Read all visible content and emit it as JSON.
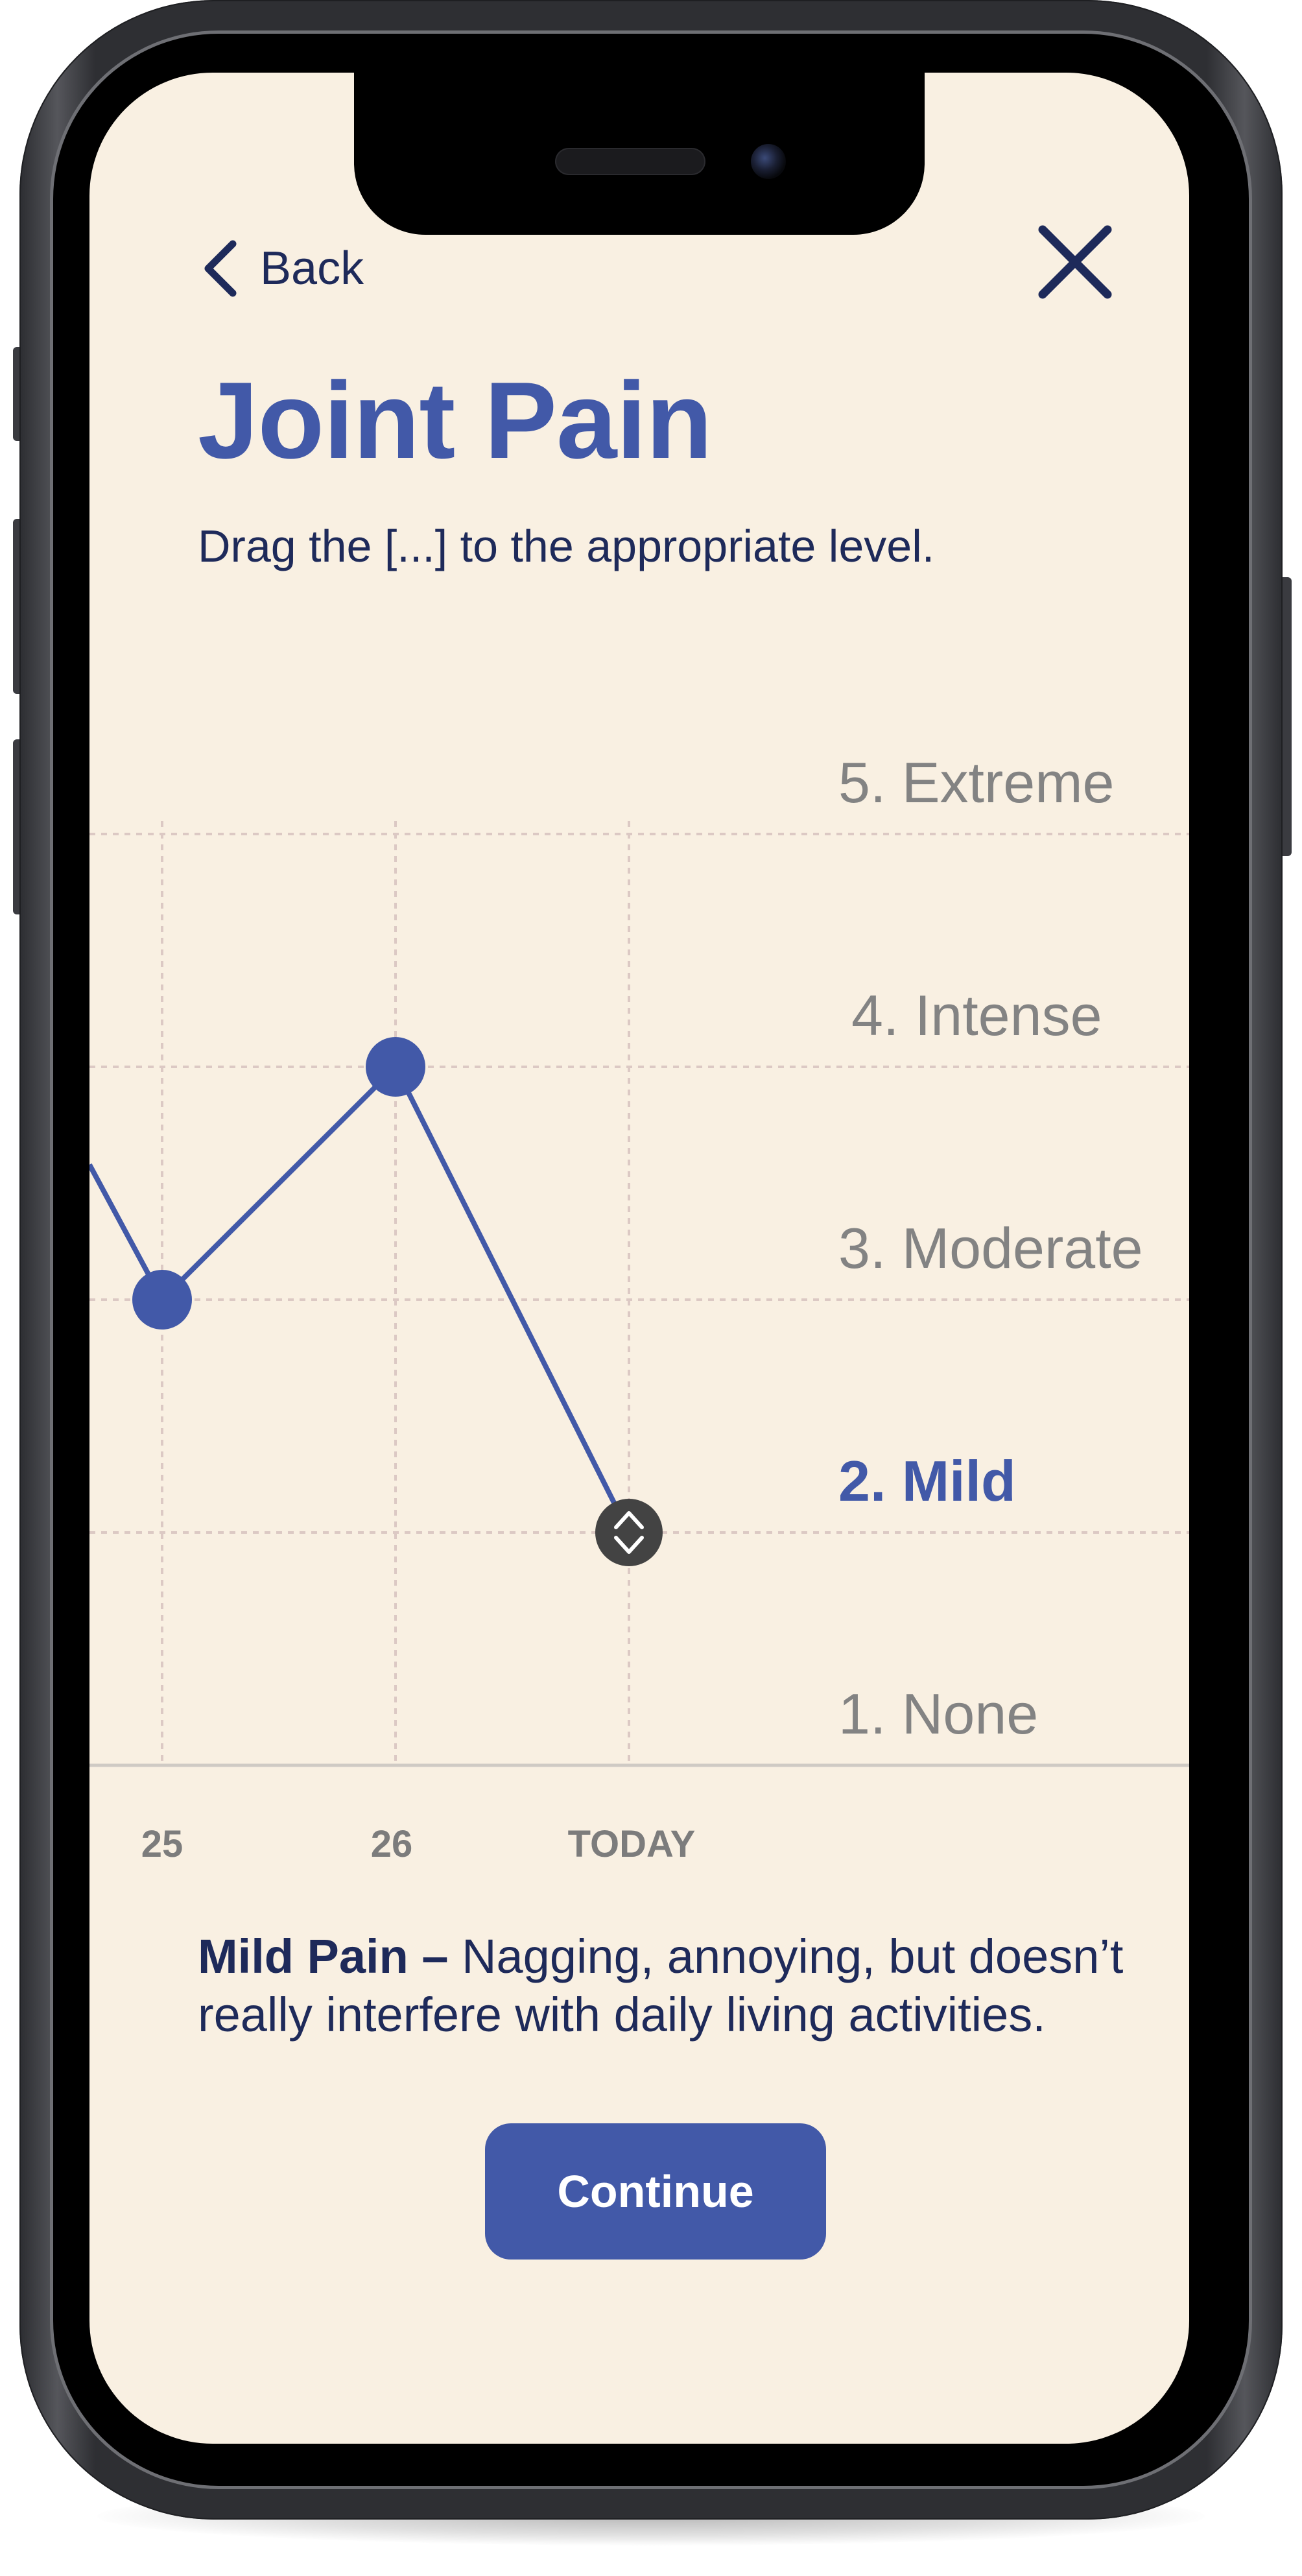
{
  "colors": {
    "background": "#f9f0e2",
    "accent": "#4259a8",
    "text_dark": "#1e2a5a",
    "level_muted": "#838383",
    "handle": "#434343"
  },
  "header": {
    "back_label": "Back",
    "back_icon": "chevron-left-icon",
    "close_icon": "close-icon"
  },
  "title": "Joint Pain",
  "subtitle": "Drag the [...] to the appropriate level.",
  "levels": [
    {
      "label": "5. Extreme",
      "value": 5,
      "active": false
    },
    {
      "label": "4. Intense",
      "value": 4,
      "active": false
    },
    {
      "label": "3. Moderate",
      "value": 3,
      "active": false
    },
    {
      "label": "2. Mild",
      "value": 2,
      "active": true
    },
    {
      "label": "1. None",
      "value": 1,
      "active": false
    }
  ],
  "chart_data": {
    "type": "line",
    "categories": [
      "25",
      "26",
      "TODAY"
    ],
    "values": [
      3,
      4,
      2
    ],
    "previous_point_trend": "higher than 3, cut off at left edge",
    "draggable_point": "TODAY",
    "ylim": [
      1,
      5
    ],
    "grid": true,
    "y_tick_labels": [
      "1. None",
      "2. Mild",
      "3. Moderate",
      "4. Intense",
      "5. Extreme"
    ],
    "selected_level": "2. Mild"
  },
  "description": {
    "label": "Mild Pain –",
    "text": " Nagging, annoying, but doesn’t really interfere with daily living activities."
  },
  "continue_label": "Continue"
}
